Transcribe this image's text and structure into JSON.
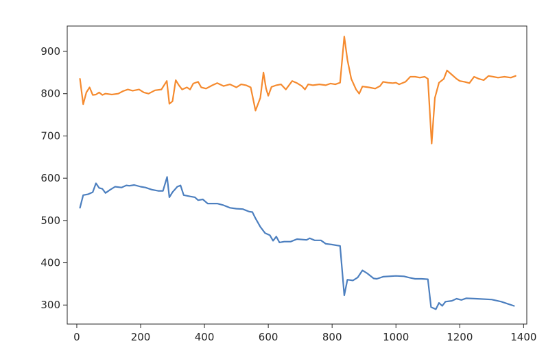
{
  "chart_data": {
    "type": "line",
    "title": "",
    "xlabel": "",
    "ylabel": "",
    "xlim": [
      -30,
      1410
    ],
    "ylim": [
      255,
      960
    ],
    "xticks": [
      0,
      200,
      400,
      600,
      800,
      1000,
      1200,
      1400
    ],
    "xtick_labels": [
      "0",
      "200",
      "400",
      "600",
      "800",
      "1000",
      "1200",
      "1400"
    ],
    "yticks": [
      300,
      400,
      500,
      600,
      700,
      800,
      900
    ],
    "ytick_labels": [
      "300",
      "400",
      "500",
      "600",
      "700",
      "800",
      "900"
    ],
    "grid": false,
    "series": [
      {
        "color": "#4c7fbf",
        "points": [
          [
            10,
            530
          ],
          [
            20,
            560
          ],
          [
            35,
            562
          ],
          [
            50,
            567
          ],
          [
            60,
            588
          ],
          [
            70,
            577
          ],
          [
            80,
            575
          ],
          [
            90,
            565
          ],
          [
            105,
            573
          ],
          [
            120,
            580
          ],
          [
            140,
            578
          ],
          [
            155,
            583
          ],
          [
            165,
            582
          ],
          [
            180,
            584
          ],
          [
            200,
            580
          ],
          [
            215,
            578
          ],
          [
            235,
            573
          ],
          [
            255,
            570
          ],
          [
            270,
            570
          ],
          [
            283,
            603
          ],
          [
            290,
            555
          ],
          [
            300,
            567
          ],
          [
            315,
            580
          ],
          [
            325,
            583
          ],
          [
            335,
            560
          ],
          [
            355,
            557
          ],
          [
            370,
            555
          ],
          [
            380,
            548
          ],
          [
            395,
            550
          ],
          [
            410,
            540
          ],
          [
            440,
            540
          ],
          [
            460,
            536
          ],
          [
            480,
            530
          ],
          [
            500,
            528
          ],
          [
            520,
            527
          ],
          [
            540,
            521
          ],
          [
            550,
            520
          ],
          [
            560,
            505
          ],
          [
            575,
            485
          ],
          [
            590,
            470
          ],
          [
            605,
            465
          ],
          [
            615,
            452
          ],
          [
            625,
            462
          ],
          [
            635,
            448
          ],
          [
            650,
            450
          ],
          [
            670,
            450
          ],
          [
            690,
            456
          ],
          [
            720,
            454
          ],
          [
            730,
            458
          ],
          [
            745,
            453
          ],
          [
            765,
            453
          ],
          [
            780,
            445
          ],
          [
            800,
            443
          ],
          [
            815,
            441
          ],
          [
            825,
            440
          ],
          [
            838,
            323
          ],
          [
            848,
            360
          ],
          [
            865,
            358
          ],
          [
            880,
            365
          ],
          [
            895,
            382
          ],
          [
            910,
            375
          ],
          [
            930,
            363
          ],
          [
            940,
            362
          ],
          [
            960,
            367
          ],
          [
            1000,
            369
          ],
          [
            1025,
            368
          ],
          [
            1040,
            365
          ],
          [
            1060,
            362
          ],
          [
            1080,
            362
          ],
          [
            1100,
            361
          ],
          [
            1110,
            295
          ],
          [
            1125,
            290
          ],
          [
            1135,
            305
          ],
          [
            1145,
            298
          ],
          [
            1155,
            308
          ],
          [
            1175,
            310
          ],
          [
            1190,
            315
          ],
          [
            1205,
            312
          ],
          [
            1220,
            316
          ],
          [
            1250,
            315
          ],
          [
            1300,
            313
          ],
          [
            1330,
            308
          ],
          [
            1350,
            303
          ],
          [
            1370,
            298
          ]
        ]
      },
      {
        "color": "#f58a2e",
        "points": [
          [
            10,
            835
          ],
          [
            20,
            775
          ],
          [
            30,
            803
          ],
          [
            40,
            815
          ],
          [
            50,
            797
          ],
          [
            60,
            798
          ],
          [
            70,
            803
          ],
          [
            80,
            797
          ],
          [
            90,
            800
          ],
          [
            110,
            798
          ],
          [
            130,
            800
          ],
          [
            145,
            806
          ],
          [
            160,
            810
          ],
          [
            175,
            807
          ],
          [
            195,
            810
          ],
          [
            210,
            803
          ],
          [
            225,
            800
          ],
          [
            245,
            808
          ],
          [
            265,
            810
          ],
          [
            282,
            830
          ],
          [
            290,
            776
          ],
          [
            300,
            782
          ],
          [
            310,
            832
          ],
          [
            320,
            820
          ],
          [
            330,
            810
          ],
          [
            345,
            815
          ],
          [
            355,
            810
          ],
          [
            365,
            824
          ],
          [
            380,
            828
          ],
          [
            390,
            815
          ],
          [
            405,
            812
          ],
          [
            425,
            820
          ],
          [
            440,
            825
          ],
          [
            460,
            818
          ],
          [
            480,
            822
          ],
          [
            500,
            815
          ],
          [
            515,
            822
          ],
          [
            530,
            820
          ],
          [
            545,
            815
          ],
          [
            560,
            760
          ],
          [
            575,
            790
          ],
          [
            585,
            850
          ],
          [
            593,
            812
          ],
          [
            600,
            795
          ],
          [
            610,
            816
          ],
          [
            625,
            820
          ],
          [
            640,
            822
          ],
          [
            655,
            810
          ],
          [
            675,
            830
          ],
          [
            690,
            825
          ],
          [
            705,
            818
          ],
          [
            715,
            810
          ],
          [
            725,
            822
          ],
          [
            740,
            820
          ],
          [
            760,
            822
          ],
          [
            780,
            820
          ],
          [
            795,
            824
          ],
          [
            810,
            822
          ],
          [
            825,
            826
          ],
          [
            838,
            935
          ],
          [
            848,
            880
          ],
          [
            860,
            835
          ],
          [
            875,
            810
          ],
          [
            885,
            800
          ],
          [
            895,
            817
          ],
          [
            915,
            815
          ],
          [
            935,
            812
          ],
          [
            950,
            818
          ],
          [
            960,
            828
          ],
          [
            975,
            826
          ],
          [
            990,
            825
          ],
          [
            1000,
            826
          ],
          [
            1010,
            822
          ],
          [
            1030,
            828
          ],
          [
            1045,
            840
          ],
          [
            1060,
            840
          ],
          [
            1075,
            838
          ],
          [
            1090,
            840
          ],
          [
            1100,
            835
          ],
          [
            1112,
            682
          ],
          [
            1122,
            790
          ],
          [
            1135,
            826
          ],
          [
            1150,
            835
          ],
          [
            1160,
            855
          ],
          [
            1175,
            845
          ],
          [
            1190,
            835
          ],
          [
            1200,
            830
          ],
          [
            1215,
            828
          ],
          [
            1230,
            825
          ],
          [
            1245,
            840
          ],
          [
            1260,
            835
          ],
          [
            1275,
            832
          ],
          [
            1290,
            842
          ],
          [
            1305,
            840
          ],
          [
            1320,
            838
          ],
          [
            1340,
            840
          ],
          [
            1360,
            838
          ],
          [
            1375,
            842
          ]
        ]
      }
    ]
  }
}
